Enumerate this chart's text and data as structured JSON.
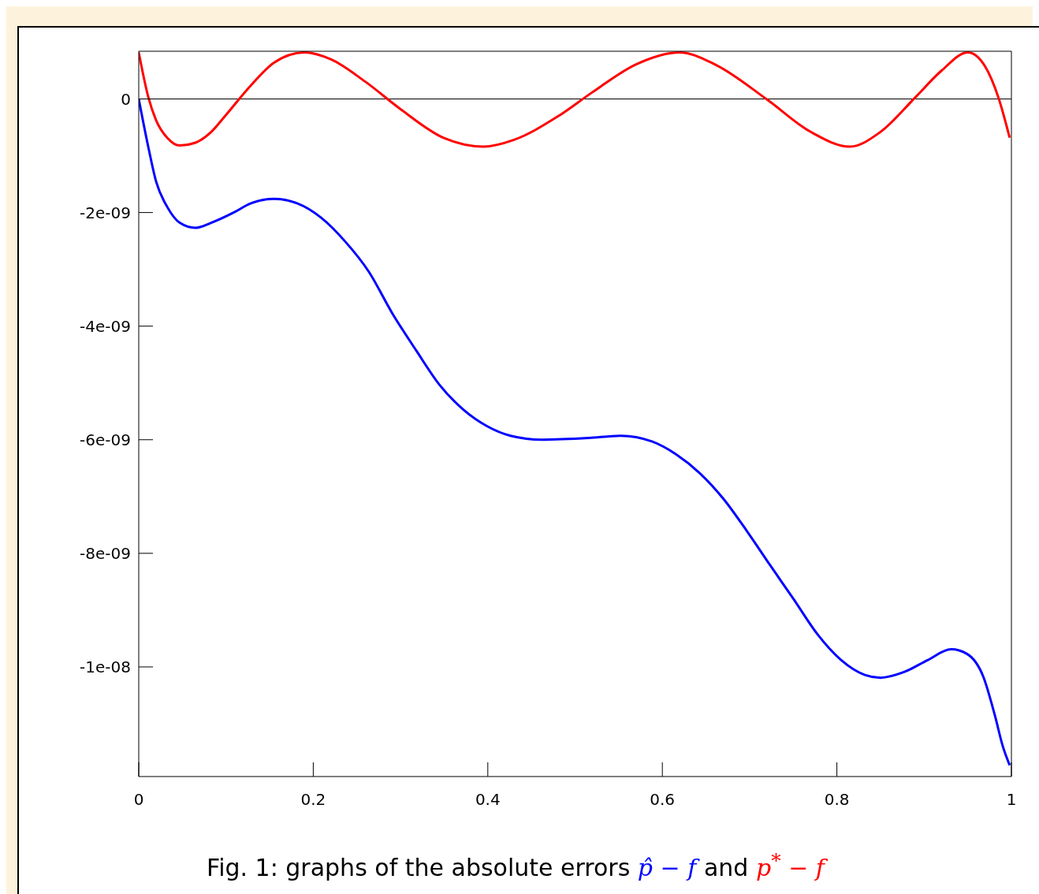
{
  "chart_data": {
    "type": "line",
    "x": [
      0,
      0.011,
      0.02,
      0.033,
      0.047,
      0.065,
      0.083,
      0.11,
      0.128,
      0.155,
      0.182,
      0.209,
      0.236,
      0.264,
      0.29,
      0.318,
      0.345,
      0.372,
      0.399,
      0.426,
      0.462,
      0.516,
      0.552,
      0.588,
      0.616,
      0.643,
      0.67,
      0.697,
      0.724,
      0.751,
      0.778,
      0.805,
      0.832,
      0.85,
      0.877,
      0.904,
      0.931,
      0.949,
      0.968,
      0.981,
      0.99,
      0.998
    ],
    "series": [
      {
        "name": "p̂ − f",
        "color": "#0000ff",
        "values": [
          0,
          -8.5e-10,
          -1.46e-09,
          -1.91e-09,
          -2.18e-09,
          -2.27e-09,
          -2.18e-09,
          -1.99e-09,
          -1.84e-09,
          -1.76e-09,
          -1.84e-09,
          -2.09e-09,
          -2.5e-09,
          -3.05e-09,
          -3.76e-09,
          -4.43e-09,
          -5.04e-09,
          -5.47e-09,
          -5.76e-09,
          -5.93e-09,
          -6e-09,
          -5.97e-09,
          -5.93e-09,
          -6.03e-09,
          -6.26e-09,
          -6.59e-09,
          -7.04e-09,
          -7.61e-09,
          -8.22e-09,
          -8.82e-09,
          -9.43e-09,
          -9.88e-09,
          -1.014e-08,
          -1.019e-08,
          -1.009e-08,
          -9.88e-09,
          -9.69e-09,
          -9.77e-09,
          -1.018e-08,
          -1.085e-08,
          -1.139e-08,
          -1.173e-08
        ]
      },
      {
        "name": "p$^{*}$ − f",
        "color": "#ff0000",
        "x": [
          0,
          0.011,
          0.02,
          0.033,
          0.047,
          0.065,
          0.083,
          0.1,
          0.128,
          0.155,
          0.19,
          0.22,
          0.26,
          0.3,
          0.35,
          0.395,
          0.43,
          0.48,
          0.52,
          0.57,
          0.62,
          0.66,
          0.72,
          0.77,
          0.815,
          0.85,
          0.89,
          0.92,
          0.95,
          0.97,
          0.985,
          0.998
        ],
        "values": [
          8.2e-10,
          3e-11,
          -3.8e-10,
          -6.9e-10,
          -8.2e-10,
          -7.7e-10,
          -5.8e-10,
          -2.8e-10,
          2.3e-10,
          6.4e-10,
          8.2e-10,
          7e-10,
          3e-10,
          -1.8e-10,
          -6.9e-10,
          -8.4e-10,
          -7.2e-10,
          -3.1e-10,
          1.2e-10,
          6.1e-10,
          8.2e-10,
          6.1e-10,
          -1e-11,
          -5.8e-10,
          -8.4e-10,
          -5.8e-10,
          3e-11,
          5e-10,
          8.2e-10,
          5.7e-10,
          3e-11,
          -6.8e-10
        ]
      }
    ],
    "xlim": [
      0,
      1
    ],
    "xticks": [
      0,
      0.2,
      0.4,
      0.6,
      0.8,
      1
    ],
    "ylim": [
      -1.193e-08,
      8.4e-10
    ],
    "yticks": [
      0,
      {
        "value": -2e-09,
        "label": "-2e-09"
      },
      {
        "value": -4e-09,
        "label": "-4e-09"
      },
      {
        "value": -6e-09,
        "label": "-6e-09"
      },
      {
        "value": -8e-09,
        "label": "-8e-09"
      },
      {
        "value": -1e-08,
        "label": "-1e-08"
      }
    ],
    "ref_lines": [
      {
        "axis": "y",
        "value": 0,
        "color": "#000000"
      }
    ],
    "annotations": [
      "Fig. 1: graphs of the absolute errors",
      "and"
    ],
    "grid": false,
    "marker": "none",
    "line_style": "solid"
  }
}
